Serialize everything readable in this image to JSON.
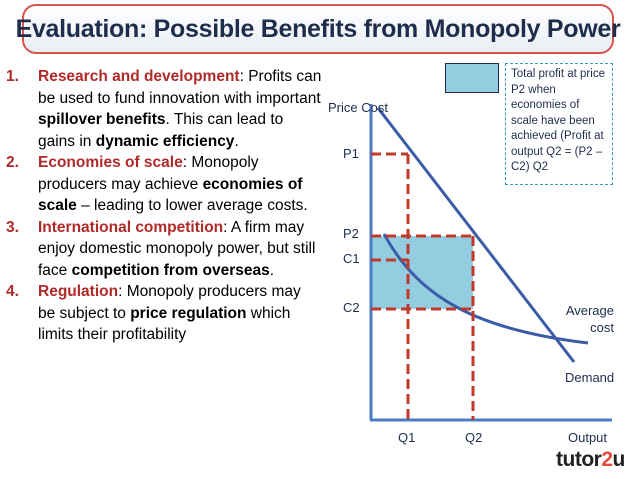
{
  "title": "Evaluation: Possible Benefits from Monopoly Power",
  "points": [
    {
      "number": "1.",
      "segments": [
        {
          "text": "Research and development",
          "style": "heading"
        },
        {
          "text": ": Profits can be used to fund innovation with important ",
          "style": "normal"
        },
        {
          "text": "spillover benefits",
          "style": "bold"
        },
        {
          "text": ". This can lead to gains in ",
          "style": "normal"
        },
        {
          "text": "dynamic efficiency",
          "style": "bold"
        },
        {
          "text": ".",
          "style": "normal"
        }
      ]
    },
    {
      "number": "2.",
      "segments": [
        {
          "text": "Economies of scale",
          "style": "heading"
        },
        {
          "text": ": Monopoly producers may achieve ",
          "style": "normal"
        },
        {
          "text": "economies of scale",
          "style": "bold"
        },
        {
          "text": " – leading to lower average costs.",
          "style": "normal"
        }
      ]
    },
    {
      "number": "3.",
      "segments": [
        {
          "text": "International competition",
          "style": "heading"
        },
        {
          "text": ": A firm may enjoy domestic monopoly power, but still face ",
          "style": "normal"
        },
        {
          "text": "competition from overseas",
          "style": "bold"
        },
        {
          "text": ".",
          "style": "normal"
        }
      ]
    },
    {
      "number": "4.",
      "segments": [
        {
          "text": "Regulation",
          "style": "heading"
        },
        {
          "text": ": Monopoly producers may be subject to ",
          "style": "normal"
        },
        {
          "text": "price regulation",
          "style": "bold"
        },
        {
          "text": " which limits their profitability",
          "style": "normal"
        }
      ]
    }
  ],
  "diagram": {
    "y_axis_label": "Price Cost",
    "x_axis_label": "Output",
    "price_labels": [
      "P1",
      "P2",
      "C1",
      "C2"
    ],
    "quantity_labels": [
      "Q1",
      "Q2"
    ],
    "curve_labels": {
      "demand": "Demand",
      "average_cost": "Average cost"
    },
    "legend_text": "Total profit at price P2 when economies of scale have been achieved (Profit at output Q2 = (P2 – C2) Q2",
    "colors": {
      "axis": "#4a7bc4",
      "curves": "#3b5da8",
      "dashed": "#c0392b",
      "profit_fill": "#93cde0"
    }
  },
  "logo": {
    "part1": "tutor",
    "part2": "2",
    "part3": "u"
  }
}
